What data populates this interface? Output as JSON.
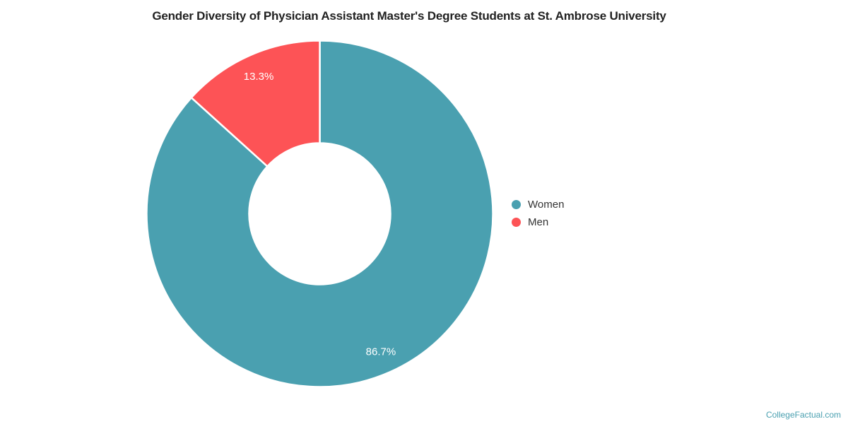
{
  "page": {
    "background": "#ffffff",
    "watermark": "CollegeFactual.com",
    "watermark_color": "#4aa0b0"
  },
  "chart_data": {
    "type": "pie",
    "subtype": "donut",
    "title": "Gender Diversity of Physician Assistant Master's Degree Students at St. Ambrose University",
    "title_color": "#212121",
    "categories": [
      "Women",
      "Men"
    ],
    "values": [
      86.7,
      13.3
    ],
    "series": [
      {
        "name": "Women",
        "value": 86.7,
        "label": "86.7%",
        "color": "#4aa0b0"
      },
      {
        "name": "Men",
        "value": 13.3,
        "label": "13.3%",
        "color": "#fd5356"
      }
    ],
    "start_angle_deg": 0,
    "direction": "clockwise",
    "inner_radius_ratio": 0.41,
    "slice_label_color": "#ffffff",
    "slice_border_color": "#ffffff",
    "legend_position": "right",
    "grid": false
  }
}
